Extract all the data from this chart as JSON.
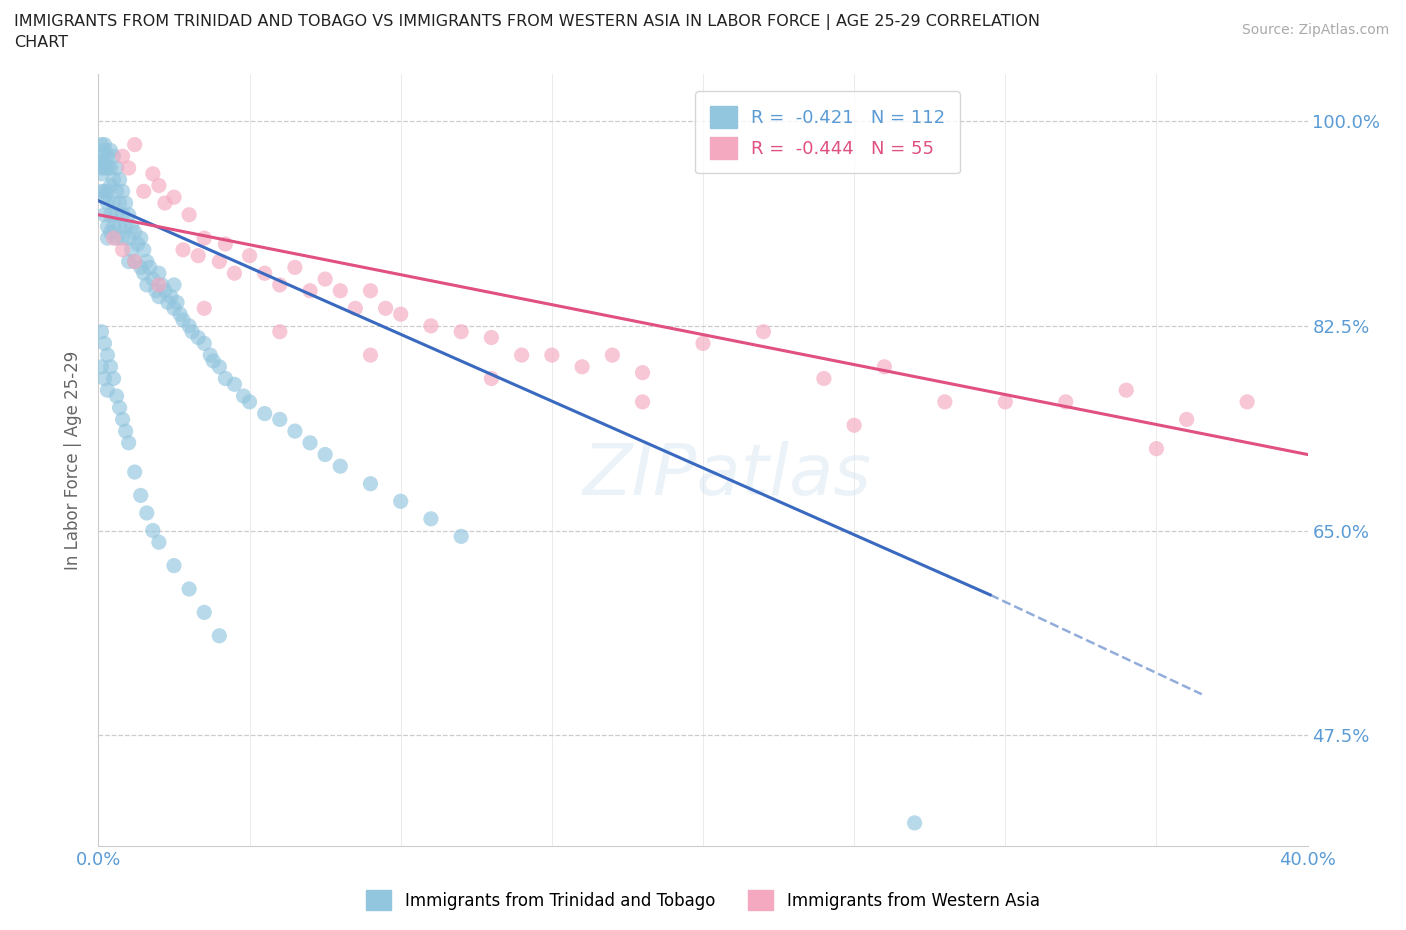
{
  "title_line1": "IMMIGRANTS FROM TRINIDAD AND TOBAGO VS IMMIGRANTS FROM WESTERN ASIA IN LABOR FORCE | AGE 25-29 CORRELATION",
  "title_line2": "CHART",
  "source_text": "Source: ZipAtlas.com",
  "ylabel": "In Labor Force | Age 25-29",
  "xlim": [
    0.0,
    0.4
  ],
  "ylim": [
    0.38,
    1.04
  ],
  "yticks": [
    0.475,
    0.65,
    0.825,
    1.0
  ],
  "ytick_labels": [
    "47.5%",
    "65.0%",
    "82.5%",
    "100.0%"
  ],
  "xticks": [
    0.0,
    0.05,
    0.1,
    0.15,
    0.2,
    0.25,
    0.3,
    0.35,
    0.4
  ],
  "blue_R": -0.421,
  "blue_N": 112,
  "pink_R": -0.444,
  "pink_N": 55,
  "blue_color": "#92c5de",
  "pink_color": "#f4a9c0",
  "blue_trend_color": "#3a6abf",
  "pink_trend_color": "#e05080",
  "blue_label": "Immigrants from Trinidad and Tobago",
  "pink_label": "Immigrants from Western Asia",
  "watermark": "ZIPatlas",
  "background_color": "#ffffff",
  "grid_color": "#cccccc",
  "tick_label_color": "#5b9bd5",
  "blue_trend_x0": 0.0,
  "blue_trend_y0": 0.932,
  "blue_trend_x1": 0.295,
  "blue_trend_y1": 0.595,
  "blue_trend_dash_x1": 0.365,
  "blue_trend_dash_y1": 0.51,
  "pink_trend_x0": 0.0,
  "pink_trend_y0": 0.92,
  "pink_trend_x1": 0.4,
  "pink_trend_y1": 0.715,
  "blue_scatter_x": [
    0.001,
    0.001,
    0.001,
    0.001,
    0.001,
    0.001,
    0.002,
    0.002,
    0.002,
    0.002,
    0.002,
    0.002,
    0.002,
    0.003,
    0.003,
    0.003,
    0.003,
    0.003,
    0.003,
    0.004,
    0.004,
    0.004,
    0.004,
    0.004,
    0.005,
    0.005,
    0.005,
    0.005,
    0.006,
    0.006,
    0.006,
    0.006,
    0.007,
    0.007,
    0.007,
    0.008,
    0.008,
    0.008,
    0.009,
    0.009,
    0.01,
    0.01,
    0.01,
    0.011,
    0.011,
    0.012,
    0.012,
    0.013,
    0.014,
    0.014,
    0.015,
    0.015,
    0.016,
    0.016,
    0.017,
    0.018,
    0.019,
    0.02,
    0.02,
    0.021,
    0.022,
    0.023,
    0.024,
    0.025,
    0.025,
    0.026,
    0.027,
    0.028,
    0.03,
    0.031,
    0.033,
    0.035,
    0.037,
    0.038,
    0.04,
    0.042,
    0.045,
    0.048,
    0.05,
    0.055,
    0.06,
    0.065,
    0.07,
    0.075,
    0.08,
    0.09,
    0.1,
    0.11,
    0.12,
    0.001,
    0.001,
    0.002,
    0.002,
    0.003,
    0.003,
    0.004,
    0.005,
    0.006,
    0.007,
    0.008,
    0.009,
    0.01,
    0.012,
    0.014,
    0.016,
    0.018,
    0.02,
    0.025,
    0.03,
    0.035,
    0.04,
    0.27
  ],
  "blue_scatter_y": [
    0.98,
    0.97,
    0.965,
    0.96,
    0.955,
    0.94,
    0.98,
    0.975,
    0.965,
    0.96,
    0.94,
    0.935,
    0.92,
    0.97,
    0.96,
    0.94,
    0.93,
    0.91,
    0.9,
    0.975,
    0.96,
    0.945,
    0.92,
    0.905,
    0.97,
    0.95,
    0.93,
    0.91,
    0.96,
    0.94,
    0.92,
    0.9,
    0.95,
    0.93,
    0.91,
    0.94,
    0.92,
    0.9,
    0.93,
    0.91,
    0.92,
    0.9,
    0.88,
    0.91,
    0.89,
    0.905,
    0.88,
    0.895,
    0.9,
    0.875,
    0.89,
    0.87,
    0.88,
    0.86,
    0.875,
    0.865,
    0.855,
    0.87,
    0.85,
    0.86,
    0.855,
    0.845,
    0.85,
    0.84,
    0.86,
    0.845,
    0.835,
    0.83,
    0.825,
    0.82,
    0.815,
    0.81,
    0.8,
    0.795,
    0.79,
    0.78,
    0.775,
    0.765,
    0.76,
    0.75,
    0.745,
    0.735,
    0.725,
    0.715,
    0.705,
    0.69,
    0.675,
    0.66,
    0.645,
    0.82,
    0.79,
    0.81,
    0.78,
    0.8,
    0.77,
    0.79,
    0.78,
    0.765,
    0.755,
    0.745,
    0.735,
    0.725,
    0.7,
    0.68,
    0.665,
    0.65,
    0.64,
    0.62,
    0.6,
    0.58,
    0.56,
    0.4
  ],
  "pink_scatter_x": [
    0.008,
    0.01,
    0.012,
    0.015,
    0.018,
    0.02,
    0.022,
    0.025,
    0.028,
    0.03,
    0.033,
    0.035,
    0.04,
    0.042,
    0.045,
    0.05,
    0.055,
    0.06,
    0.065,
    0.07,
    0.075,
    0.08,
    0.085,
    0.09,
    0.095,
    0.1,
    0.11,
    0.12,
    0.13,
    0.14,
    0.15,
    0.16,
    0.17,
    0.18,
    0.2,
    0.22,
    0.24,
    0.26,
    0.28,
    0.3,
    0.32,
    0.34,
    0.36,
    0.38,
    0.005,
    0.008,
    0.012,
    0.02,
    0.035,
    0.06,
    0.09,
    0.13,
    0.18,
    0.25,
    0.35
  ],
  "pink_scatter_y": [
    0.97,
    0.96,
    0.98,
    0.94,
    0.955,
    0.945,
    0.93,
    0.935,
    0.89,
    0.92,
    0.885,
    0.9,
    0.88,
    0.895,
    0.87,
    0.885,
    0.87,
    0.86,
    0.875,
    0.855,
    0.865,
    0.855,
    0.84,
    0.855,
    0.84,
    0.835,
    0.825,
    0.82,
    0.815,
    0.8,
    0.8,
    0.79,
    0.8,
    0.785,
    0.81,
    0.82,
    0.78,
    0.79,
    0.76,
    0.76,
    0.76,
    0.77,
    0.745,
    0.76,
    0.9,
    0.89,
    0.88,
    0.86,
    0.84,
    0.82,
    0.8,
    0.78,
    0.76,
    0.74,
    0.72
  ]
}
